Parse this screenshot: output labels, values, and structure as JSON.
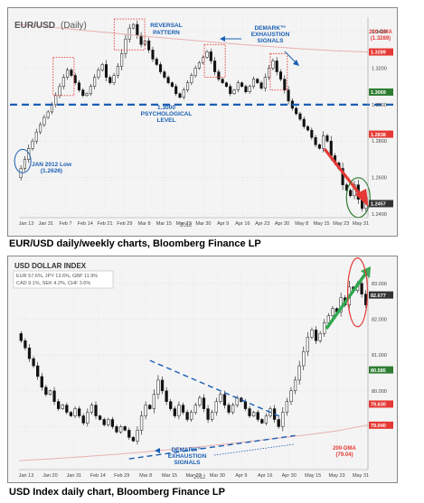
{
  "chart_data": [
    {
      "type": "candlestick",
      "title": "EUR/USD",
      "subtitle": "(Daily)",
      "year_label": "2012",
      "ylim": [
        1.238,
        1.348
      ],
      "yticks": [
        1.34,
        1.32,
        1.3,
        1.28,
        1.26,
        1.24
      ],
      "ytick_labels": [
        "1.3400",
        "1.3200",
        "1.3000",
        "1.2800",
        "1.2600",
        "1.2400"
      ],
      "xtick_labels": [
        "Jan 13",
        "Jan 31",
        "Feb 7",
        "Feb 14",
        "Feb 21",
        "Feb 29",
        "Mar 8",
        "Mar 15",
        "Mar 23",
        "Mar 30",
        "Apr 9",
        "Apr 16",
        "Apr 23",
        "Apr 30",
        "May 8",
        "May 15",
        "May 23",
        "May 31"
      ],
      "price_tags": [
        {
          "label": "1.3289",
          "value": 1.3289,
          "color": "#e53935"
        },
        {
          "label": "1.3069",
          "value": 1.3069,
          "color": "#2e7d32"
        },
        {
          "label": "1.2838",
          "value": 1.2838,
          "color": "#e53935"
        },
        {
          "label": "1.2457",
          "value": 1.2457,
          "color": "#333333"
        }
      ],
      "support_level": 1.3,
      "dma_200": 1.3289,
      "dma_series": [
        1.344,
        1.3425,
        1.3408,
        1.3392,
        1.3375,
        1.336,
        1.3345,
        1.333,
        1.3318,
        1.3305,
        1.3295,
        1.3289
      ],
      "annotations": {
        "reversal": "REVERSAL\nPATTERN",
        "demark": "DEMARK™\nEXHAUSTION\nSIGNALS",
        "dma_label": "200-DMA\n(1.3289)",
        "psych": "1.3000\nPSYCHOLOGICAL\nLEVEL",
        "jan_low": "JAN 2012 Low\n(1.2626)"
      },
      "close": [
        1.265,
        1.27,
        1.276,
        1.28,
        1.285,
        1.289,
        1.293,
        1.296,
        1.3,
        1.305,
        1.31,
        1.315,
        1.319,
        1.316,
        1.312,
        1.308,
        1.305,
        1.306,
        1.31,
        1.315,
        1.319,
        1.322,
        1.315,
        1.312,
        1.316,
        1.321,
        1.328,
        1.336,
        1.342,
        1.344,
        1.338,
        1.333,
        1.335,
        1.33,
        1.325,
        1.322,
        1.318,
        1.315,
        1.312,
        1.31,
        1.306,
        1.304,
        1.308,
        1.312,
        1.316,
        1.32,
        1.323,
        1.326,
        1.329,
        1.324,
        1.318,
        1.314,
        1.312,
        1.31,
        1.306,
        1.308,
        1.312,
        1.31,
        1.307,
        1.31,
        1.314,
        1.312,
        1.309,
        1.315,
        1.32,
        1.324,
        1.318,
        1.314,
        1.308,
        1.302,
        1.298,
        1.295,
        1.292,
        1.288,
        1.286,
        1.282,
        1.278,
        1.276,
        1.283,
        1.28,
        1.272,
        1.268,
        1.265,
        1.256,
        1.253,
        1.25,
        1.256,
        1.248,
        1.243,
        1.248
      ]
    },
    {
      "type": "candlestick",
      "title": "USD DOLLAR INDEX",
      "weights_line1": "EUR 57.6%, JPY 13.6%, GBP 11.9%",
      "weights_line2": "CAD 9.1%, SEK 4.2%, CHF 3.6%",
      "year_label": "2012",
      "ylim": [
        77.8,
        83.4
      ],
      "yticks": [
        83.0,
        82.0,
        81.0,
        80.0,
        79.0
      ],
      "ytick_labels": [
        "83.000",
        "82.000",
        "81.000",
        "80.000",
        "79.000"
      ],
      "xtick_labels": [
        "Jan 13",
        "Jan 20",
        "Jan 31",
        "Feb 14",
        "Feb 29",
        "Mar 8",
        "Mar 15",
        "Mar 23",
        "Mar 30",
        "Apr 9",
        "Apr 16",
        "Apr 30",
        "May 15",
        "May 23",
        "May 31"
      ],
      "price_tags": [
        {
          "label": "82.677",
          "value": 82.677,
          "color": "#333333"
        },
        {
          "label": "80.585",
          "value": 80.585,
          "color": "#2e7d32"
        },
        {
          "label": "79.630",
          "value": 79.63,
          "color": "#e53935"
        },
        {
          "label": "79.040",
          "value": 79.04,
          "color": "#e53935"
        }
      ],
      "dma_200": 79.04,
      "dma_series": [
        78.05,
        78.1,
        78.16,
        78.22,
        78.3,
        78.38,
        78.46,
        78.56,
        78.66,
        78.76,
        78.88,
        79.04
      ],
      "annotations": {
        "demark": "DEMARK™\nEXHAUSTION\nSIGNALS",
        "dma_label": "200-DMA\n(79.04)"
      },
      "close": [
        81.4,
        81.2,
        80.9,
        80.7,
        80.4,
        80.1,
        79.9,
        80.0,
        79.7,
        79.5,
        79.6,
        79.4,
        79.3,
        79.5,
        79.3,
        79.1,
        79.4,
        79.6,
        79.3,
        79.2,
        79.05,
        79.2,
        79.0,
        78.85,
        79.0,
        78.9,
        78.7,
        78.6,
        78.9,
        79.3,
        79.6,
        79.5,
        79.9,
        80.3,
        80.0,
        79.7,
        79.5,
        79.3,
        79.6,
        79.4,
        79.2,
        79.4,
        79.6,
        79.8,
        79.5,
        79.2,
        79.4,
        79.7,
        79.9,
        79.6,
        79.4,
        79.6,
        79.8,
        79.7,
        79.5,
        79.3,
        79.4,
        79.2,
        79.1,
        79.3,
        79.5,
        79.2,
        79.0,
        79.4,
        79.7,
        80.0,
        80.3,
        80.7,
        81.1,
        81.5,
        81.7,
        81.4,
        81.6,
        81.9,
        82.1,
        82.3,
        82.2,
        82.6,
        82.4,
        82.9,
        82.8,
        83.0,
        82.7,
        82.4
      ]
    }
  ],
  "captions": {
    "panel1": "EUR/USD daily/weekly charts, Bloomberg Finance LP",
    "panel2": "USD Index daily chart, Bloomberg Finance LP"
  }
}
